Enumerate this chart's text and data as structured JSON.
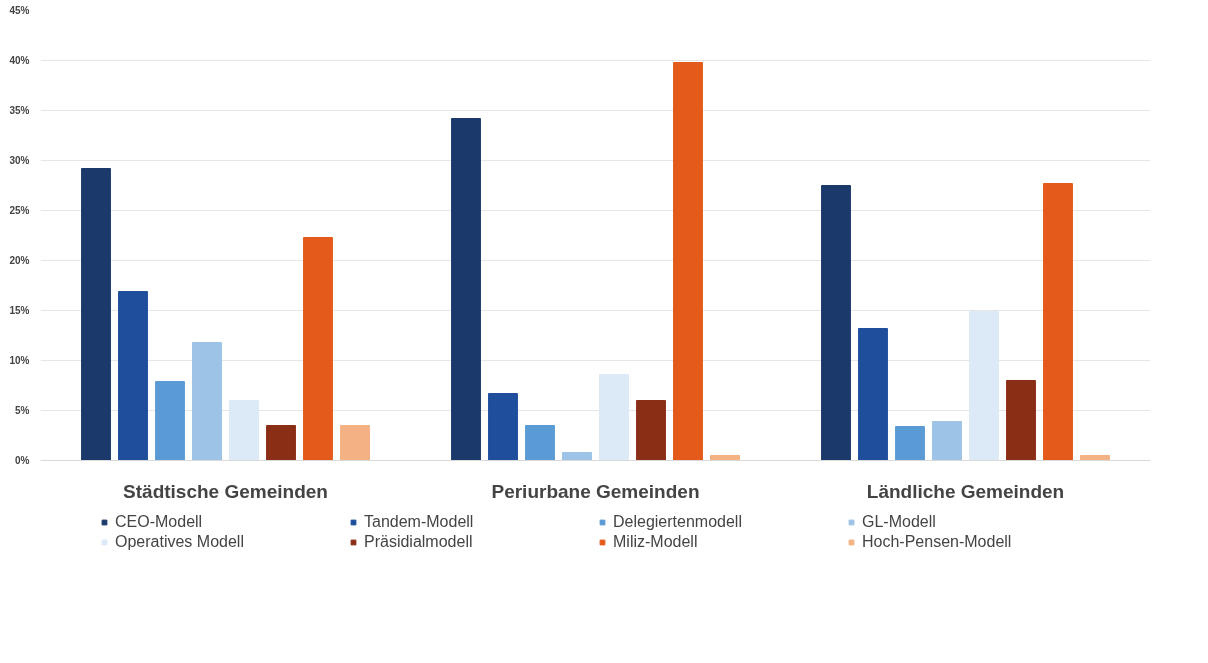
{
  "chart_data": {
    "type": "bar",
    "categories": [
      "Städtische Gemeinden",
      "Periurbane Gemeinden",
      "Ländliche Gemeinden"
    ],
    "series": [
      {
        "name": "CEO-Modell",
        "color": "#1b3a6b",
        "values": [
          29.2,
          34.2,
          27.5
        ]
      },
      {
        "name": "Tandem-Modell",
        "color": "#1f4e9c",
        "values": [
          16.9,
          6.7,
          13.2
        ]
      },
      {
        "name": "Delegiertenmodell",
        "color": "#5b9bd5",
        "values": [
          7.9,
          3.5,
          3.4
        ]
      },
      {
        "name": "GL-Modell",
        "color": "#9dc3e6",
        "values": [
          11.8,
          0.8,
          3.9
        ]
      },
      {
        "name": "Operatives Modell",
        "color": "#dce9f6",
        "values": [
          6.0,
          8.6,
          14.9
        ]
      },
      {
        "name": "Präsidialmodell",
        "color": "#8b2e16",
        "values": [
          3.5,
          6.0,
          8.0
        ]
      },
      {
        "name": "Miliz-Modell",
        "color": "#e35a1a",
        "values": [
          22.3,
          39.8,
          27.7
        ]
      },
      {
        "name": "Hoch-Pensen-Modell",
        "color": "#f4b183",
        "values": [
          3.5,
          0.5,
          0.5
        ]
      }
    ],
    "ylim": [
      0,
      45
    ],
    "yticks": [
      {
        "value": 0,
        "label": "0%"
      },
      {
        "value": 5,
        "label": "5%"
      },
      {
        "value": 10,
        "label": "10%"
      },
      {
        "value": 15,
        "label": "15%"
      },
      {
        "value": 20,
        "label": "20%"
      },
      {
        "value": 25,
        "label": "25%"
      },
      {
        "value": 30,
        "label": "30%"
      },
      {
        "value": 35,
        "label": "35%"
      },
      {
        "value": 40,
        "label": "40%"
      },
      {
        "value": 45,
        "label": "45%"
      }
    ],
    "grid": "y",
    "legend": "bottom"
  }
}
